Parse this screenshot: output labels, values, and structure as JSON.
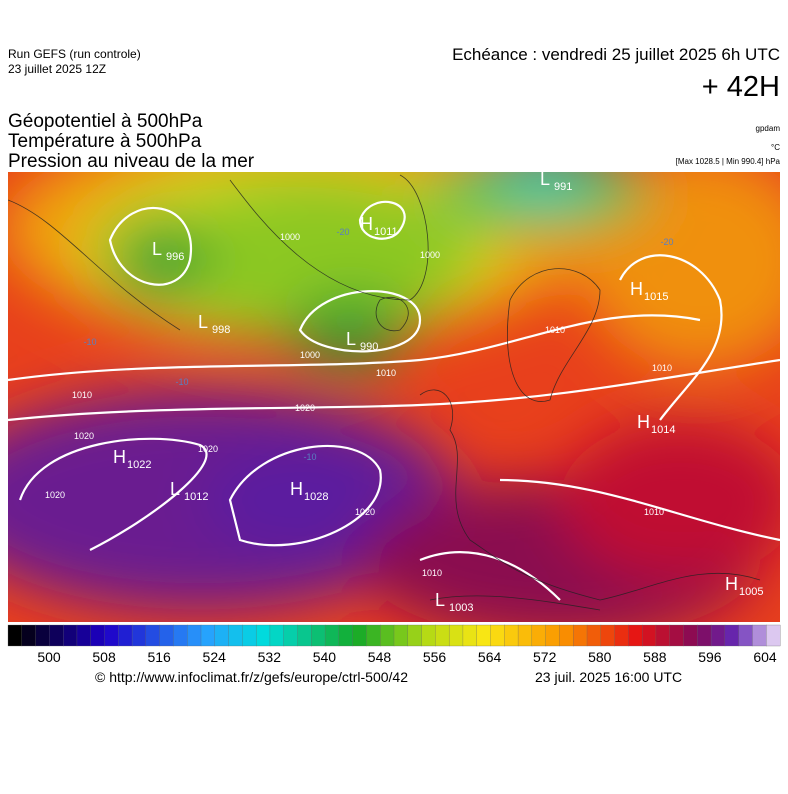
{
  "header": {
    "run": "Run GEFS (run controle)",
    "date": "23 juillet 2025 12Z",
    "echeance": "Echéance : vendredi 25 juillet 2025 6h UTC",
    "lead": "+ 42H"
  },
  "titles": [
    "Géopotentiel à 500hPa",
    "Température à 500hPa",
    "Pression au niveau de la mer"
  ],
  "units": [
    "gpdam",
    "°C",
    "[Max 1028.5 | Min 990.4] hPa"
  ],
  "centers": [
    {
      "letter": "L",
      "value": "996"
    },
    {
      "letter": "H",
      "value": "1011"
    },
    {
      "letter": "L",
      "value": "998"
    },
    {
      "letter": "L",
      "value": "990"
    },
    {
      "letter": "L",
      "value": "991"
    },
    {
      "letter": "H",
      "value": "1015"
    },
    {
      "letter": "H",
      "value": "1022"
    },
    {
      "letter": "L",
      "value": "1012"
    },
    {
      "letter": "H",
      "value": "1028"
    },
    {
      "letter": "H",
      "value": "1014"
    },
    {
      "letter": "L",
      "value": "1003"
    },
    {
      "letter": "H",
      "value": "1005"
    }
  ],
  "isobar_labels": [
    "1000",
    "1000",
    "1000",
    "1010",
    "1010",
    "1020",
    "1020",
    "1020",
    "1020",
    "1020",
    "1010",
    "1010",
    "1010",
    "1010"
  ],
  "temperature_labels": [
    "-20",
    "-20",
    "-10",
    "-10",
    "-10"
  ],
  "colorbar": {
    "ticks": [
      "500",
      "508",
      "516",
      "524",
      "532",
      "540",
      "548",
      "556",
      "564",
      "572",
      "580",
      "588",
      "596",
      "604"
    ]
  },
  "footer": {
    "url": "© http://www.infoclimat.fr/z/gefs/europe/ctrl-500/42",
    "time": "23 juil. 2025 16:00 UTC"
  }
}
